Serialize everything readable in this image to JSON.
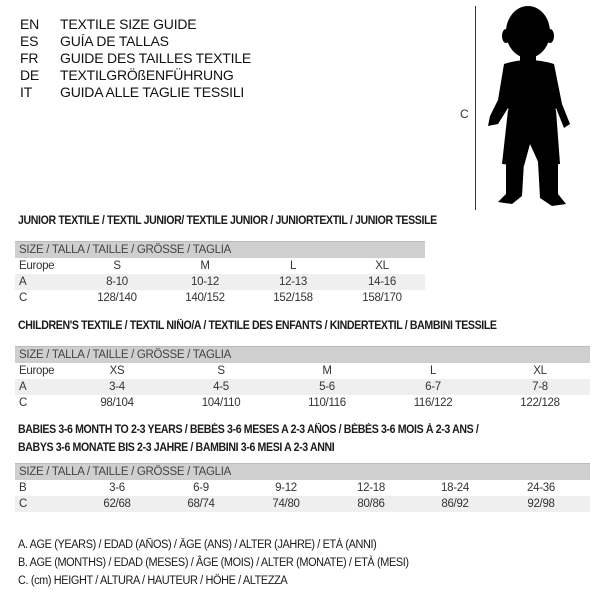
{
  "languages": [
    {
      "code": "EN",
      "text": "TEXTILE SIZE GUIDE"
    },
    {
      "code": "ES",
      "text": "GUÍA DE TALLAS"
    },
    {
      "code": "FR",
      "text": "GUIDE DES TAILLES TEXTILE"
    },
    {
      "code": "DE",
      "text": "TEXTILGRÖßENFÜHRUNG"
    },
    {
      "code": "IT",
      "text": "GUIDA ALLE TAGLIE TESSILI"
    }
  ],
  "figure": {
    "icon": "child-silhouette-icon",
    "measure_label": "C"
  },
  "junior": {
    "title": "JUNIOR TEXTILE / TEXTIL JUNIOR/ TEXTILE JUNIOR / JUNIORTEXTIL / JUNIOR TESSILE",
    "header": "SIZE / TALLA / TAILLE / GRÖSSE / TAGLIA",
    "rows": [
      {
        "label": "Europe",
        "values": [
          "S",
          "M",
          "L",
          "XL"
        ]
      },
      {
        "label": "A",
        "values": [
          "8-10",
          "10-12",
          "12-13",
          "14-16"
        ]
      },
      {
        "label": "C",
        "values": [
          "128/140",
          "140/152",
          "152/158",
          "158/170"
        ]
      }
    ]
  },
  "children": {
    "title": "CHILDREN'S TEXTILE / TEXTIL NIÑO/A / TEXTILE DES ENFANTS / KINDERTEXTIL / BAMBINI TESSILE",
    "header": "SIZE / TALLA / TAILLE / GRÖSSE / TAGLIA",
    "rows": [
      {
        "label": "Europe",
        "values": [
          "XS",
          "S",
          "M",
          "L",
          "XL"
        ]
      },
      {
        "label": "A",
        "values": [
          "3-4",
          "4-5",
          "5-6",
          "6-7",
          "7-8"
        ]
      },
      {
        "label": "C",
        "values": [
          "98/104",
          "104/110",
          "110/116",
          "116/122",
          "122/128"
        ]
      }
    ]
  },
  "babies": {
    "title_line1": "BABIES 3-6 MONTH TO 2-3 YEARS / BEBÉS 3-6 MESES A 2-3 AÑOS / BÉBÉS 3-6 MOIS À 2-3 ANS /",
    "title_line2": "BABYS 3-6 MONATE BIS 2-3 JAHRE / BAMBINI 3-6 MESI A 2-3 ANNI",
    "header": "SIZE / TALLA / TAILLE / GRÖSSE / TAGLIA",
    "rows": [
      {
        "label": "B",
        "values": [
          "3-6",
          "6-9",
          "9-12",
          "12-18",
          "18-24",
          "24-36"
        ]
      },
      {
        "label": "C",
        "values": [
          "62/68",
          "68/74",
          "74/80",
          "80/86",
          "86/92",
          "92/98"
        ]
      }
    ]
  },
  "legend": [
    "A. AGE (YEARS) / EDAD (AÑOS) / ÂGE (ANS) / ALTER (JAHRE) / ETÀ (ANNI)",
    "B. AGE (MONTHS) / EDAD (MESES) / ÂGE (MOIS) / ALTER (MONATE) / ETÀ (MESI)",
    "C. (cm) HEIGHT / ALTURA / HAUTEUR / HÖHE / ALTEZZA"
  ]
}
